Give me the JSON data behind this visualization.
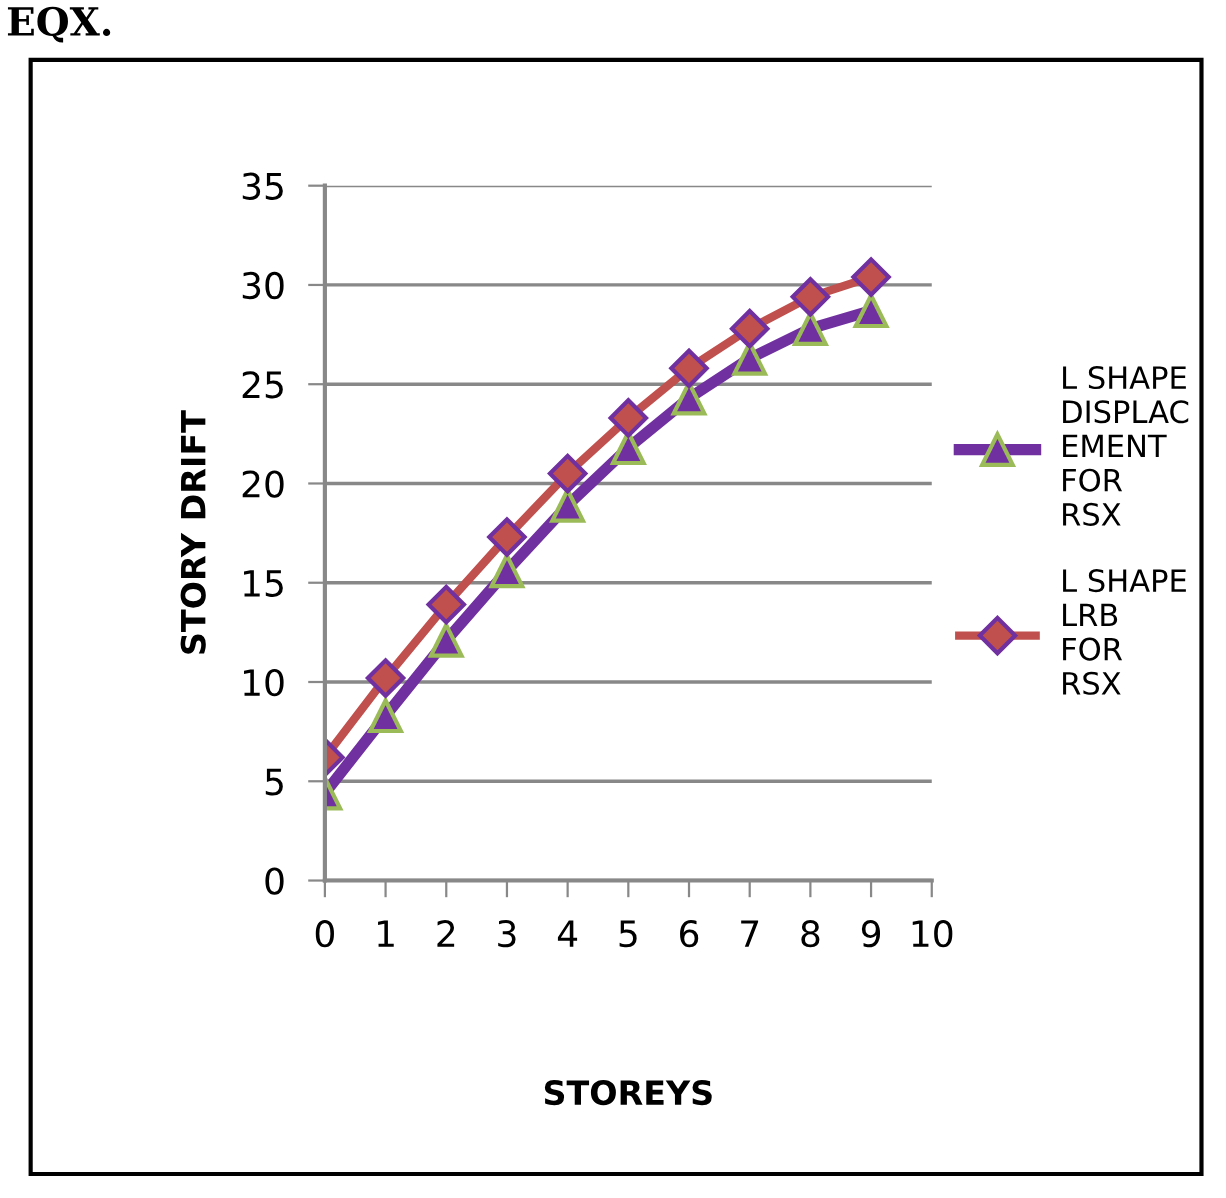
{
  "chart_data": {
    "type": "line",
    "annotations": [
      "EQX."
    ],
    "xlabel": "STOREYS",
    "ylabel": "STORY DRIFT",
    "x": [
      0,
      1,
      2,
      3,
      4,
      5,
      6,
      7,
      8,
      9
    ],
    "series": [
      {
        "name": "L SHAPE\nDISPLAC\nEMENT\nFOR\nRSX",
        "color": "#7030a0",
        "marker": "triangle",
        "values": [
          4.4,
          8.3,
          12.1,
          15.6,
          18.9,
          21.8,
          24.3,
          26.3,
          27.8,
          28.7
        ]
      },
      {
        "name": "L SHAPE\nLRB\nFOR\nRSX",
        "color": "#c0504d",
        "marker": "diamond",
        "values": [
          6.2,
          10.2,
          13.9,
          17.3,
          20.5,
          23.3,
          25.8,
          27.8,
          29.4,
          30.4
        ]
      }
    ],
    "xlim": [
      0,
      10
    ],
    "xticks": [
      0,
      1,
      2,
      3,
      4,
      5,
      6,
      7,
      8,
      9,
      10
    ],
    "ylim": [
      0,
      35
    ],
    "yticks": [
      0,
      5,
      10,
      15,
      20,
      25,
      30,
      35
    ],
    "grid": "y",
    "legend": "right",
    "line_style": "solid"
  }
}
